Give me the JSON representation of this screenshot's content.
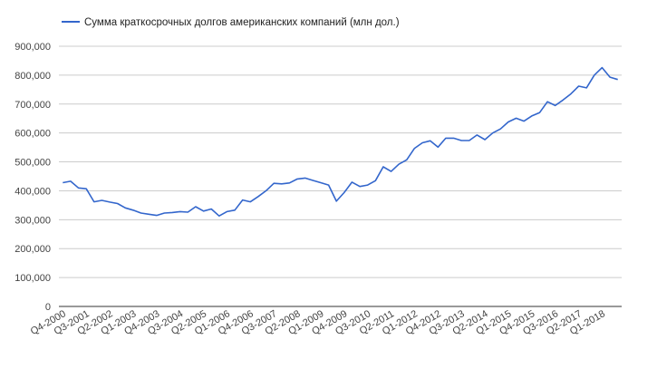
{
  "chart_data": {
    "type": "line",
    "title": "",
    "xlabel": "",
    "ylabel": "",
    "legend_position": "top-left",
    "grid": true,
    "ylim": [
      0,
      900000
    ],
    "y_ticks": [
      "0",
      "100,000",
      "200,000",
      "300,000",
      "400,000",
      "500,000",
      "600,000",
      "700,000",
      "800,000",
      "900,000"
    ],
    "x_tick_labels": [
      "Q4-2000",
      "Q3-2001",
      "Q2-2002",
      "Q1-2003",
      "Q4-2003",
      "Q3-2004",
      "Q2-2005",
      "Q1-2006",
      "Q4-2006",
      "Q3-2007",
      "Q2-2008",
      "Q1-2009",
      "Q4-2009",
      "Q3-2010",
      "Q2-2011",
      "Q1-2012",
      "Q4-2012",
      "Q3-2013",
      "Q2-2014",
      "Q1-2015",
      "Q4-2015",
      "Q3-2016",
      "Q2-2017",
      "Q1-2018"
    ],
    "series": [
      {
        "name": "Сумма краткосрочных долгов американских компаний (млн дол.)",
        "color": "#3366cc",
        "start_period": "Q4-2000",
        "values": [
          428000,
          433000,
          410000,
          407000,
          362000,
          367000,
          361000,
          356000,
          341000,
          333000,
          323000,
          319000,
          315000,
          323000,
          325000,
          328000,
          326000,
          345000,
          330000,
          337000,
          313000,
          328000,
          333000,
          368000,
          362000,
          380000,
          400000,
          426000,
          424000,
          427000,
          441000,
          444000,
          436000,
          428000,
          420000,
          364000,
          394000,
          430000,
          415000,
          420000,
          435000,
          483000,
          467000,
          492000,
          507000,
          547000,
          566000,
          573000,
          551000,
          582000,
          582000,
          574000,
          574000,
          593000,
          577000,
          600000,
          614000,
          638000,
          651000,
          641000,
          659000,
          670000,
          708000,
          695000,
          714000,
          735000,
          762000,
          756000,
          800000,
          826000,
          793000,
          785000
        ]
      }
    ]
  }
}
